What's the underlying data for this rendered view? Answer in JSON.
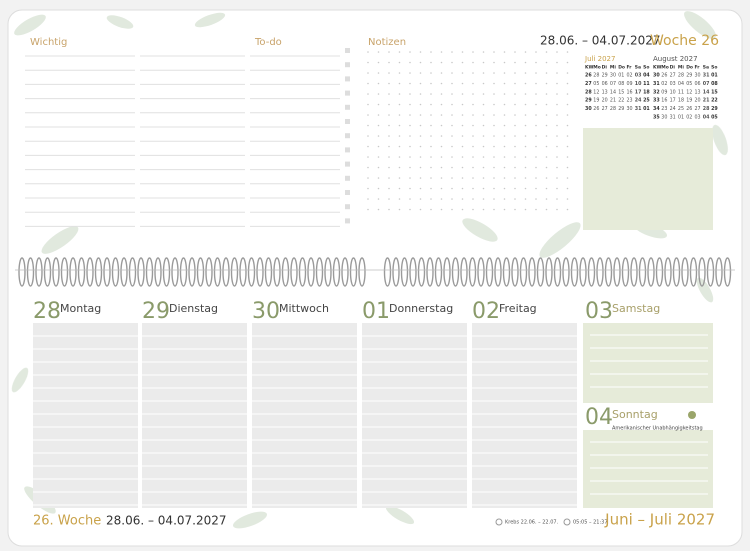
{
  "top": {
    "labels": [
      "Wichtig",
      "To-do",
      "Notizen"
    ],
    "date_range": "28.06. – 04.07.2027",
    "week": "Woche 26"
  },
  "mini_calendars": [
    {
      "title": "Juli 2027",
      "header": [
        "KW",
        "Mo",
        "Di",
        "Mi",
        "Do",
        "Fr",
        "Sa",
        "So"
      ],
      "weeks": [
        [
          "26",
          "28",
          "29",
          "30",
          "01",
          "02",
          "03",
          "04"
        ],
        [
          "27",
          "05",
          "06",
          "07",
          "08",
          "09",
          "10",
          "11"
        ],
        [
          "28",
          "12",
          "13",
          "14",
          "15",
          "16",
          "17",
          "18"
        ],
        [
          "29",
          "19",
          "20",
          "21",
          "22",
          "23",
          "24",
          "25"
        ],
        [
          "30",
          "26",
          "27",
          "28",
          "29",
          "30",
          "31",
          "01"
        ]
      ]
    },
    {
      "title": "August 2027",
      "header": [
        "KW",
        "Mo",
        "Di",
        "Mi",
        "Do",
        "Fr",
        "Sa",
        "So"
      ],
      "weeks": [
        [
          "30",
          "26",
          "27",
          "28",
          "29",
          "30",
          "31",
          "01"
        ],
        [
          "31",
          "02",
          "03",
          "04",
          "05",
          "06",
          "07",
          "08"
        ],
        [
          "32",
          "09",
          "10",
          "11",
          "12",
          "13",
          "14",
          "15"
        ],
        [
          "33",
          "16",
          "17",
          "18",
          "19",
          "20",
          "21",
          "22"
        ],
        [
          "34",
          "23",
          "24",
          "25",
          "26",
          "27",
          "28",
          "29"
        ],
        [
          "35",
          "30",
          "31",
          "01",
          "02",
          "03",
          "04",
          "05"
        ]
      ]
    }
  ],
  "days": [
    {
      "num": "28",
      "name": "Montag"
    },
    {
      "num": "29",
      "name": "Dienstag"
    },
    {
      "num": "30",
      "name": "Mittwoch"
    },
    {
      "num": "01",
      "name": "Donnerstag"
    },
    {
      "num": "02",
      "name": "Freitag"
    },
    {
      "num": "03",
      "name": "Samstag"
    },
    {
      "num": "04",
      "name": "Sonntag",
      "note": "Amerikanischer Unabhängigkeitstag"
    }
  ],
  "footer": {
    "week": "26. Woche",
    "date_range": "28.06. – 04.07.2027",
    "zodiac": "Krebs 22.06. – 22.07.",
    "sun": "05:05 – 21:37",
    "months": "Juni – Juli 2027"
  }
}
